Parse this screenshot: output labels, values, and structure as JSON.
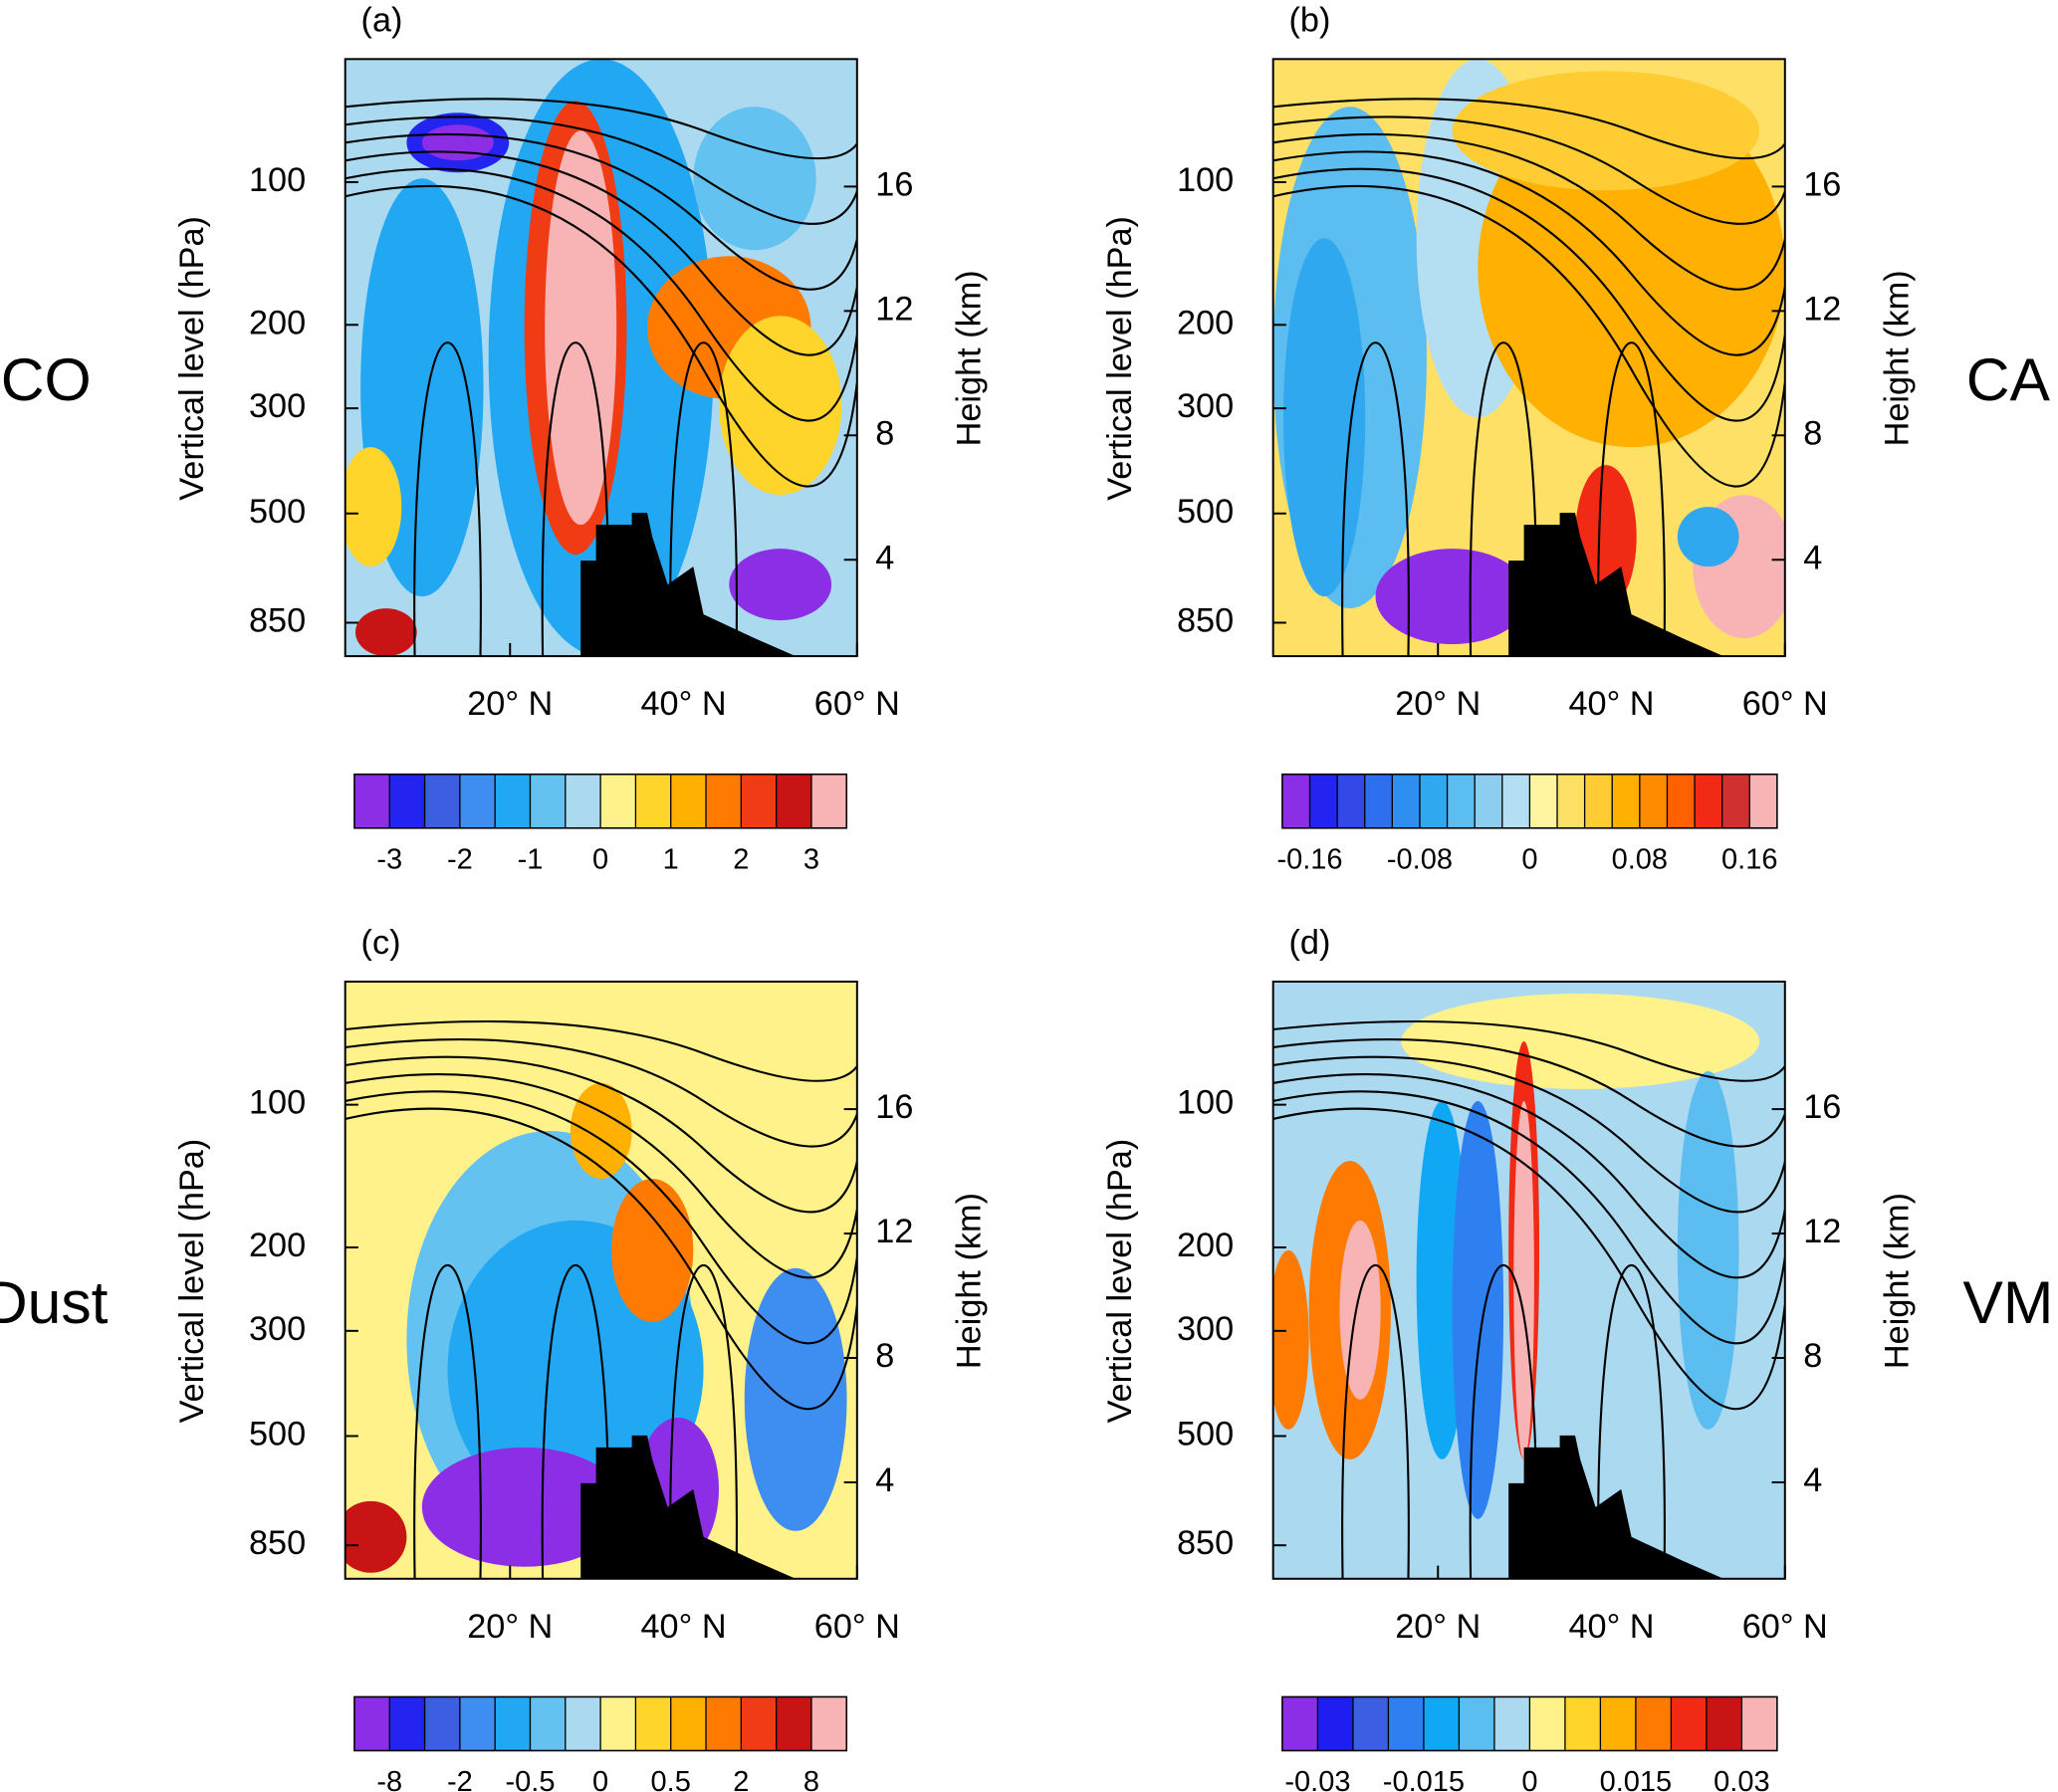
{
  "chart_data": [
    {
      "type": "contour",
      "title": "(a)",
      "row_label": "CO",
      "ylabel": "Vertical level (hPa)",
      "y2label": "Height (km)",
      "log_y": true,
      "xlim": [
        1,
        60
      ],
      "xticks": [
        {
          "value": 20,
          "label": "20° N"
        },
        {
          "value": 40,
          "label": "40° N"
        },
        {
          "value": 60,
          "label": "60° N"
        }
      ],
      "ylim": [
        1000,
        55
      ],
      "yticks": [
        100,
        200,
        300,
        500,
        850
      ],
      "y2lim": [
        0.9,
        20.1
      ],
      "y2ticks": [
        4,
        8,
        12,
        16
      ],
      "colorbar": {
        "levels": [
          -3,
          -2.5,
          -2,
          -1.5,
          -1,
          -0.5,
          0,
          0.5,
          1,
          1.5,
          2,
          2.5,
          3
        ],
        "ticks": [
          -3,
          -2,
          -1,
          0,
          1,
          2,
          3
        ],
        "colors": [
          "#8c2ee6",
          "#2424f0",
          "#3c5ee0",
          "#3d8ef0",
          "#22a8f2",
          "#63c2f0",
          "#aad9f0",
          "#fff28a",
          "#ffd52b",
          "#ffb000",
          "#ff7a00",
          "#f03c14",
          "#c81414",
          "#f8b4b4"
        ]
      }
    },
    {
      "type": "contour",
      "title": "(b)",
      "row_label": "CA",
      "ylabel": "Vertical level (hPa)",
      "y2label": "Height (km)",
      "log_y": true,
      "xlim": [
        1,
        60
      ],
      "xticks": [
        {
          "value": 20,
          "label": "20° N"
        },
        {
          "value": 40,
          "label": "40° N"
        },
        {
          "value": 60,
          "label": "60° N"
        }
      ],
      "ylim": [
        1000,
        55
      ],
      "yticks": [
        100,
        200,
        300,
        500,
        850
      ],
      "y2lim": [
        0.9,
        20.1
      ],
      "y2ticks": [
        4,
        8,
        12,
        16
      ],
      "colorbar": {
        "levels": [
          -0.16,
          -0.14,
          -0.12,
          -0.1,
          -0.08,
          -0.06,
          -0.04,
          -0.02,
          0,
          0.02,
          0.04,
          0.06,
          0.08,
          0.1,
          0.12,
          0.14,
          0.16
        ],
        "ticks": [
          -0.16,
          -0.08,
          0,
          0.08,
          0.16
        ],
        "colors": [
          "#8c2ee6",
          "#2424f0",
          "#3249e8",
          "#2e6ff0",
          "#2f8ff0",
          "#2fa8f0",
          "#5cbdf0",
          "#8ccdf0",
          "#b4dff2",
          "#fff5a0",
          "#ffe066",
          "#ffcc33",
          "#ffb000",
          "#ff8c00",
          "#ff6000",
          "#f02a14",
          "#d03030",
          "#f8b4b4"
        ]
      }
    },
    {
      "type": "contour",
      "title": "(c)",
      "row_label": "Dust",
      "ylabel": "Vertical level (hPa)",
      "y2label": "Height (km)",
      "log_y": true,
      "xlim": [
        1,
        60
      ],
      "xticks": [
        {
          "value": 20,
          "label": "20° N"
        },
        {
          "value": 40,
          "label": "40° N"
        },
        {
          "value": 60,
          "label": "60° N"
        }
      ],
      "ylim": [
        1000,
        55
      ],
      "yticks": [
        100,
        200,
        300,
        500,
        850
      ],
      "y2lim": [
        0.9,
        20.1
      ],
      "y2ticks": [
        4,
        8,
        12,
        16
      ],
      "colorbar": {
        "levels": [
          -8,
          -4,
          -2,
          -1,
          -0.5,
          -0.2,
          0,
          0.2,
          0.5,
          1,
          2,
          4,
          8
        ],
        "ticks": [
          -8,
          -2,
          -0.5,
          0,
          0.5,
          2,
          8
        ],
        "colors": [
          "#8c2ee6",
          "#2424f0",
          "#3c5ee0",
          "#3d8ef0",
          "#22a8f2",
          "#63c2f0",
          "#aad9f0",
          "#fff28a",
          "#ffd52b",
          "#ffb000",
          "#ff7a00",
          "#f03c14",
          "#c81414",
          "#f8b4b4"
        ]
      }
    },
    {
      "type": "contour",
      "title": "(d)",
      "row_label": "VM",
      "ylabel": "Vertical level (hPa)",
      "y2label": "Height (km)",
      "log_y": true,
      "xlim": [
        1,
        60
      ],
      "xticks": [
        {
          "value": 20,
          "label": "20° N"
        },
        {
          "value": 40,
          "label": "40° N"
        },
        {
          "value": 60,
          "label": "60° N"
        }
      ],
      "ylim": [
        1000,
        55
      ],
      "yticks": [
        100,
        200,
        300,
        500,
        850
      ],
      "y2lim": [
        0.9,
        20.1
      ],
      "y2ticks": [
        4,
        8,
        12,
        16
      ],
      "colorbar": {
        "levels": [
          -0.03,
          -0.025,
          -0.02,
          -0.015,
          -0.01,
          -0.005,
          0,
          0.005,
          0.01,
          0.015,
          0.02,
          0.025,
          0.03
        ],
        "ticks": [
          -0.03,
          -0.015,
          0,
          0.015,
          0.03
        ],
        "colors": [
          "#8c2ee6",
          "#1e1ef0",
          "#3c5ee0",
          "#2e7ff0",
          "#10a8f5",
          "#5cbdf0",
          "#aad9f0",
          "#fff28a",
          "#ffd52b",
          "#ffb000",
          "#ff7a00",
          "#f02a14",
          "#c81414",
          "#f8b4b4"
        ]
      }
    }
  ]
}
